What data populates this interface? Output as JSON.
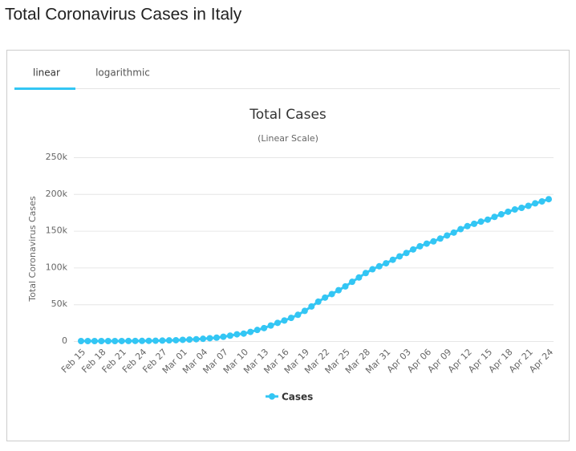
{
  "page_title": "Total Coronavirus Cases in Italy",
  "tabs": [
    "linear",
    "logarithmic"
  ],
  "chart_data": {
    "type": "line",
    "title": "Total Cases",
    "subtitle": "(Linear Scale)",
    "y_label": "Total Coronavirus Cases",
    "categories": [
      "Feb 15",
      null,
      null,
      "Feb 18",
      null,
      null,
      "Feb 21",
      null,
      null,
      "Feb 24",
      null,
      null,
      "Feb 27",
      null,
      null,
      "Mar 01",
      null,
      null,
      "Mar 04",
      null,
      null,
      "Mar 07",
      null,
      null,
      "Mar 10",
      null,
      null,
      "Mar 13",
      null,
      null,
      "Mar 16",
      null,
      null,
      "Mar 19",
      null,
      null,
      "Mar 22",
      null,
      null,
      "Mar 25",
      null,
      null,
      "Mar 28",
      null,
      null,
      "Mar 31",
      null,
      null,
      "Apr 03",
      null,
      null,
      "Apr 06",
      null,
      null,
      "Apr 09",
      null,
      null,
      "Apr 12",
      null,
      null,
      "Apr 15",
      null,
      null,
      "Apr 18",
      null,
      null,
      "Apr 21",
      null,
      null,
      "Apr 24"
    ],
    "series": [
      {
        "name": "Cases",
        "color": "#33c6f4",
        "values": [
          3,
          3,
          3,
          3,
          3,
          3,
          20,
          79,
          157,
          229,
          323,
          470,
          655,
          889,
          1128,
          1694,
          2036,
          2502,
          3089,
          3858,
          4636,
          5883,
          7375,
          9172,
          10149,
          12462,
          15113,
          17660,
          21157,
          24747,
          27980,
          31506,
          35713,
          41035,
          47021,
          53578,
          59138,
          63927,
          69176,
          74386,
          80589,
          86498,
          92472,
          97689,
          101739,
          105792,
          110574,
          115242,
          119827,
          124632,
          128948,
          132547,
          135586,
          139422,
          143626,
          147577,
          152271,
          156363,
          159516,
          162488,
          165155,
          168941,
          172434,
          175925,
          178972,
          181228,
          183957,
          187327,
          189973,
          192994
        ]
      }
    ],
    "ylim": [
      0,
      250000
    ],
    "yticks": [
      0,
      {
        "value": 50000,
        "label": "50k"
      },
      {
        "value": 100000,
        "label": "100k"
      },
      {
        "value": 150000,
        "label": "150k"
      },
      {
        "value": 200000,
        "label": "200k"
      },
      {
        "value": 250000,
        "label": "250k"
      }
    ],
    "grid": true
  }
}
